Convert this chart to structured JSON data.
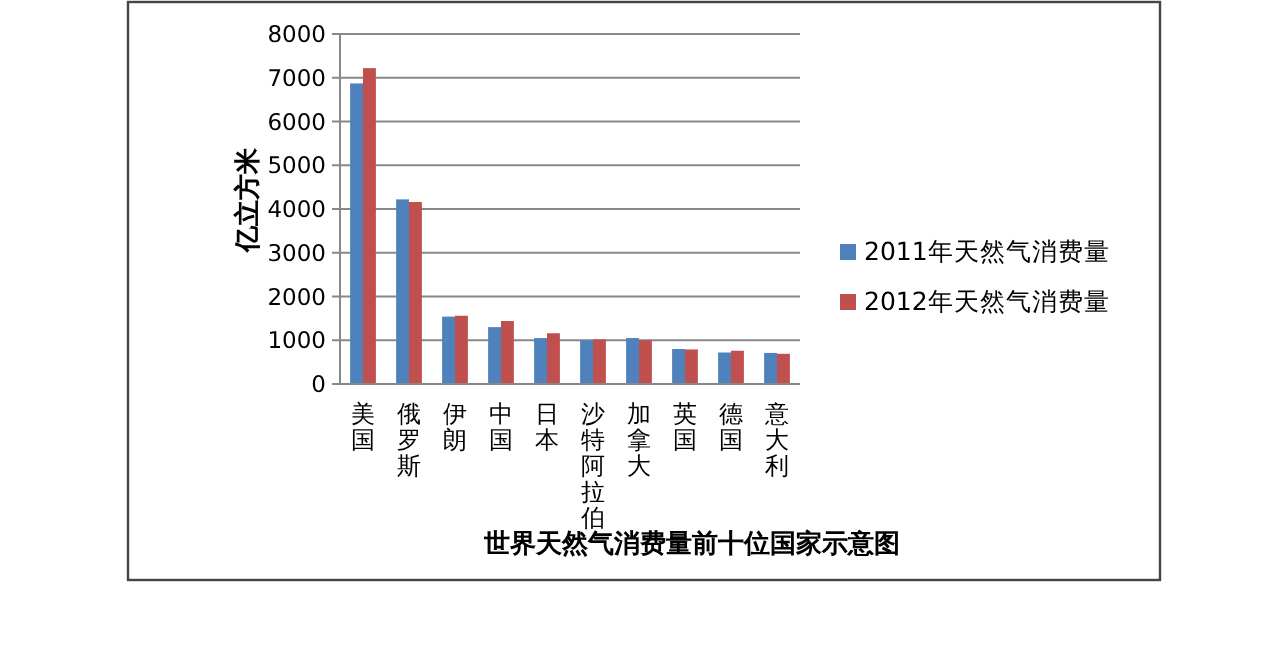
{
  "chart_data": {
    "type": "bar",
    "title": "世界天然气消费量前十位国家示意图",
    "ylabel": "亿立方米",
    "categories": [
      "美国",
      "俄罗斯",
      "伊朗",
      "中国",
      "日本",
      "沙特阿拉伯",
      "加拿大",
      "英国",
      "德国",
      "意大利"
    ],
    "series": [
      {
        "name": "2011年天然气消费量",
        "color": "#4f81bd",
        "values": [
          6870,
          4220,
          1540,
          1300,
          1050,
          1000,
          1050,
          800,
          720,
          710
        ]
      },
      {
        "name": "2012年天然气消费量",
        "color": "#c0504d",
        "values": [
          7220,
          4160,
          1560,
          1440,
          1160,
          1020,
          1000,
          790,
          760,
          690
        ]
      }
    ],
    "ylim": [
      0,
      8000
    ],
    "yticks": [
      0,
      1000,
      2000,
      3000,
      4000,
      5000,
      6000,
      7000,
      8000
    ],
    "grid": "y",
    "legend": "right"
  }
}
